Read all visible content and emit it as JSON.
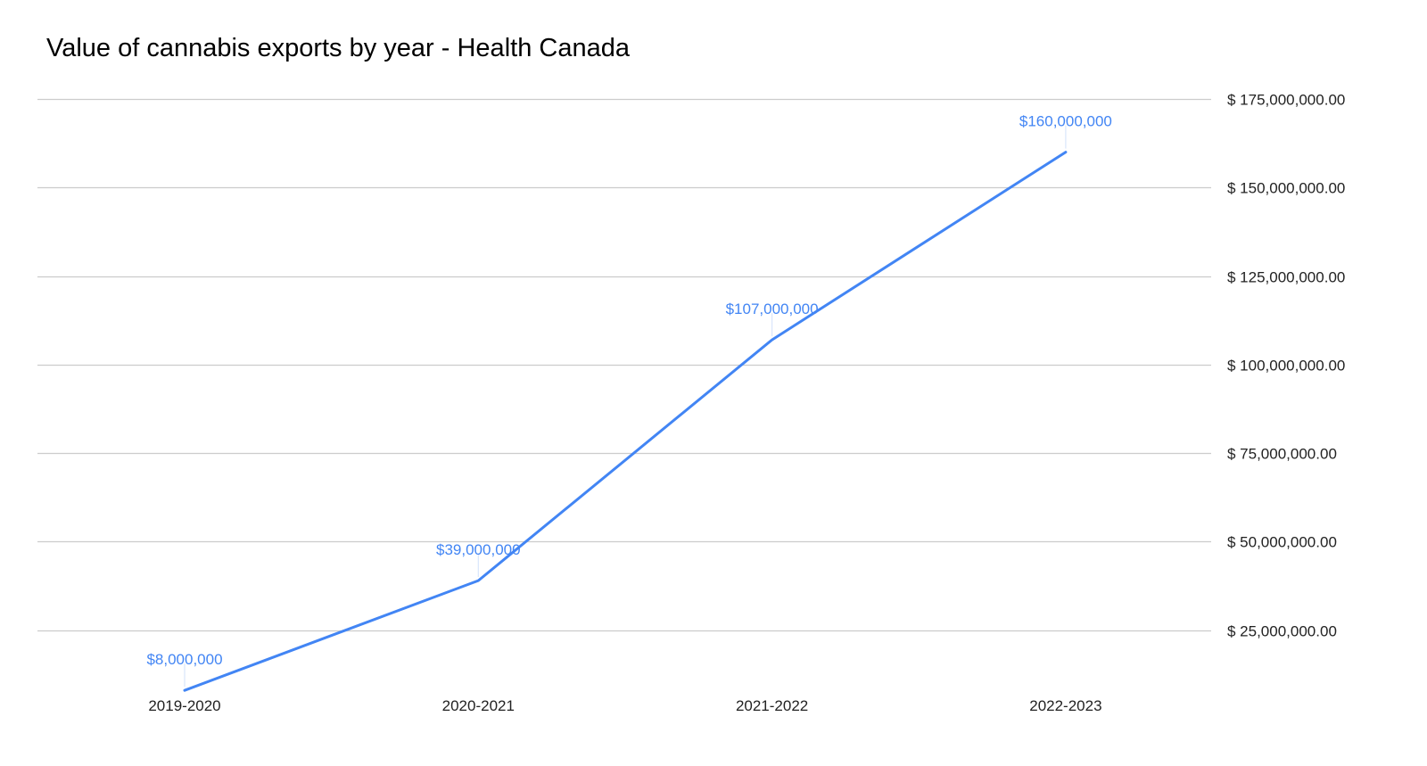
{
  "chart_data": {
    "type": "line",
    "title": "Value of cannabis exports by year - Health Canada",
    "categories": [
      "2019-2020",
      "2020-2021",
      "2021-2022",
      "2022-2023"
    ],
    "series": [
      {
        "values": [
          8000000,
          39000000,
          107000000,
          160000000
        ],
        "data_labels": [
          "$8,000,000",
          "$39,000,000",
          "$107,000,000",
          "$160,000,000"
        ],
        "color": "#4285f4"
      }
    ],
    "y_ticks": [
      25000000,
      50000000,
      75000000,
      100000000,
      125000000,
      150000000,
      175000000
    ],
    "y_tick_labels": [
      "$ 25,000,000.00",
      "$ 50,000,000.00",
      "$ 75,000,000.00",
      "$ 100,000,000.00",
      "$ 125,000,000.00",
      "$ 150,000,000.00",
      "$ 175,000,000.00"
    ],
    "ylim": [
      0,
      175000000
    ],
    "y_axis_position": "right",
    "grid": true,
    "gridline_color": "#cccccc",
    "leader_line_color": "#d9e6fb"
  }
}
